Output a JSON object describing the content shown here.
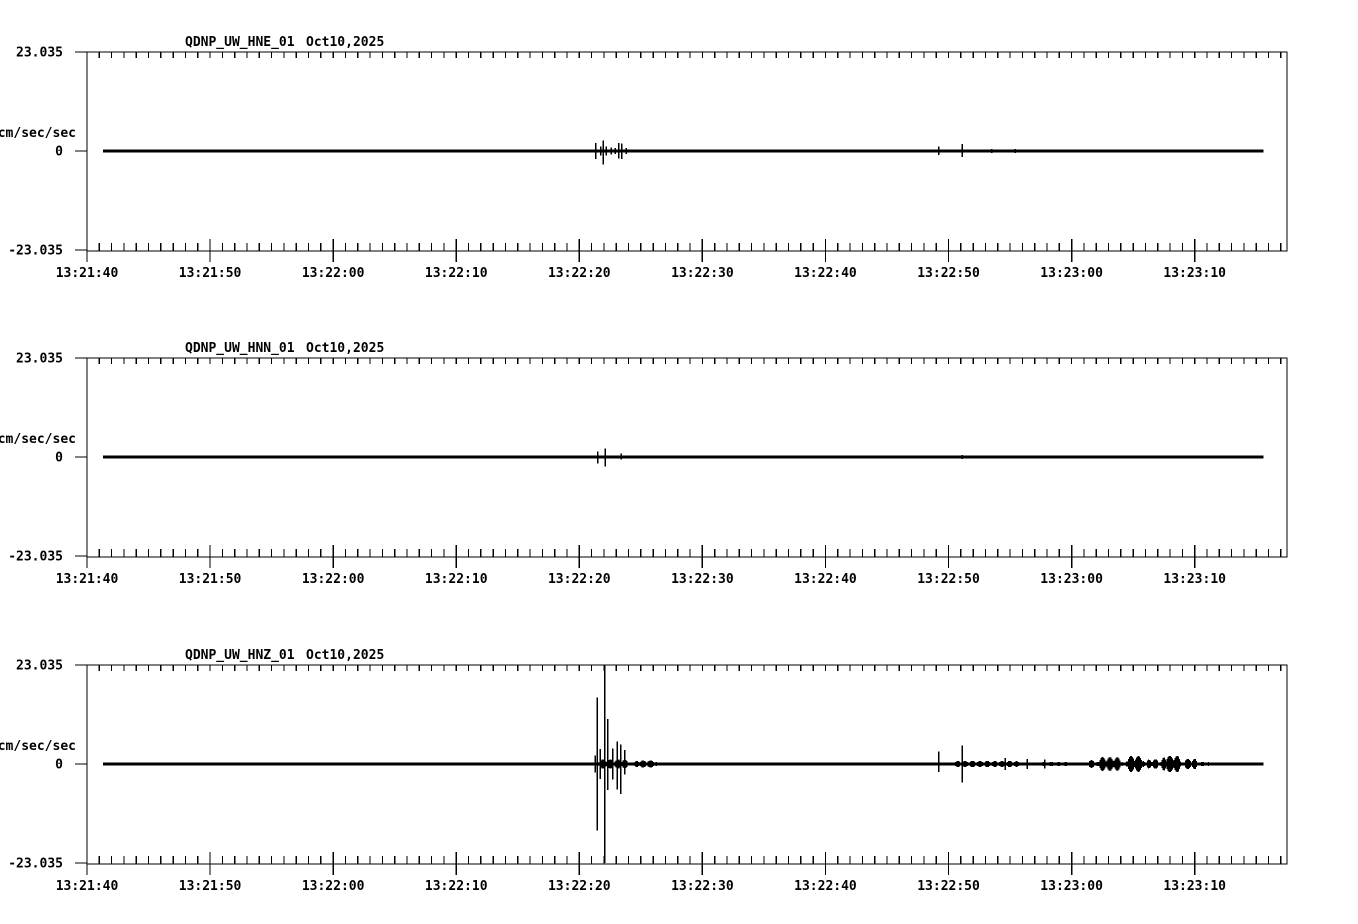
{
  "chart_data": {
    "type": "line",
    "kind": "seismogram-strip-charts",
    "background_color": "#ffffff",
    "trace_color": "#000000",
    "time_axis": {
      "start_label": "13:21:40",
      "tick_labels": [
        "13:21:40",
        "13:21:50",
        "13:22:00",
        "13:22:10",
        "13:22:20",
        "13:22:30",
        "13:22:40",
        "13:22:50",
        "13:23:00",
        "13:23:10"
      ],
      "label_interval_sec": 10,
      "minor_tick_interval_sec": 1,
      "axis_span_sec": 97.5,
      "trace_start_sec": 1.3,
      "trace_end_sec": 95.6
    },
    "y_axis": {
      "unit": "cm/sec/sec",
      "max": 23.035,
      "min": -23.035,
      "ticks": [
        {
          "label": "23.035",
          "value": 23.035
        },
        {
          "label": "0",
          "value": 0
        },
        {
          "label": "-23.035",
          "value": -23.035
        }
      ]
    },
    "panels": [
      {
        "station": "QDNP_UW_HNE_01",
        "date": "Oct10,2025",
        "events": [
          [
            41.35,
            1.9,
            1.9
          ],
          [
            41.75,
            1.1,
            1.0
          ],
          [
            41.95,
            2.4,
            3.1
          ],
          [
            42.2,
            1.0,
            1.0
          ],
          [
            42.6,
            0.8,
            0.8
          ],
          [
            42.9,
            0.7,
            0.7
          ],
          [
            43.2,
            1.9,
            1.7
          ],
          [
            43.45,
            1.7,
            1.9
          ],
          [
            43.8,
            0.7,
            0.7
          ],
          [
            69.2,
            1.1,
            0.9
          ],
          [
            71.1,
            1.6,
            1.4
          ],
          [
            73.5,
            0.5,
            0.5
          ],
          [
            75.4,
            0.5,
            0.5
          ],
          [
            83.1,
            0.4,
            0.4
          ],
          [
            85.5,
            0.4,
            0.4
          ]
        ],
        "noise_bands": [
          [
            41.2,
            44.2,
            0.4
          ]
        ]
      },
      {
        "station": "QDNP_UW_HNN_01",
        "date": "Oct10,2025",
        "events": [
          [
            41.5,
            1.3,
            1.5
          ],
          [
            42.1,
            2.0,
            2.2
          ],
          [
            43.4,
            0.8,
            0.6
          ],
          [
            69.2,
            0.4,
            0.4
          ],
          [
            71.1,
            0.5,
            0.5
          ]
        ],
        "noise_bands": [
          [
            15.2,
            18.0,
            0.35
          ],
          [
            41.3,
            43.8,
            0.3
          ]
        ]
      },
      {
        "station": "QDNP_UW_HNZ_01",
        "date": "Oct10,2025",
        "events": [
          [
            41.3,
            2.0,
            2.0
          ],
          [
            41.45,
            15.5,
            15.5
          ],
          [
            41.7,
            3.5,
            3.5
          ],
          [
            42.08,
            23.0,
            23.0
          ],
          [
            42.3,
            10.5,
            6.0
          ],
          [
            42.7,
            3.6,
            3.6
          ],
          [
            43.1,
            5.2,
            5.9
          ],
          [
            43.35,
            4.5,
            7.0
          ],
          [
            43.7,
            3.3,
            2.4
          ],
          [
            69.2,
            2.9,
            1.9
          ],
          [
            71.1,
            4.3,
            4.3
          ],
          [
            74.6,
            1.4,
            1.4
          ],
          [
            76.4,
            1.2,
            1.2
          ],
          [
            77.8,
            1.0,
            1.0
          ]
        ],
        "noise_bands": [
          [
            41.2,
            44.3,
            1.1
          ],
          [
            44.3,
            46.5,
            0.8
          ],
          [
            46.5,
            49.0,
            0.35
          ],
          [
            69.5,
            76.8,
            0.7
          ],
          [
            76.8,
            80.5,
            0.45
          ],
          [
            81.3,
            81.9,
            0.9
          ],
          [
            81.9,
            84.3,
            1.6
          ],
          [
            84.3,
            86.0,
            1.9
          ],
          [
            86.0,
            87.2,
            1.1
          ],
          [
            87.2,
            89.0,
            1.9
          ],
          [
            89.0,
            90.3,
            1.2
          ],
          [
            90.3,
            91.3,
            0.5
          ]
        ]
      }
    ]
  }
}
